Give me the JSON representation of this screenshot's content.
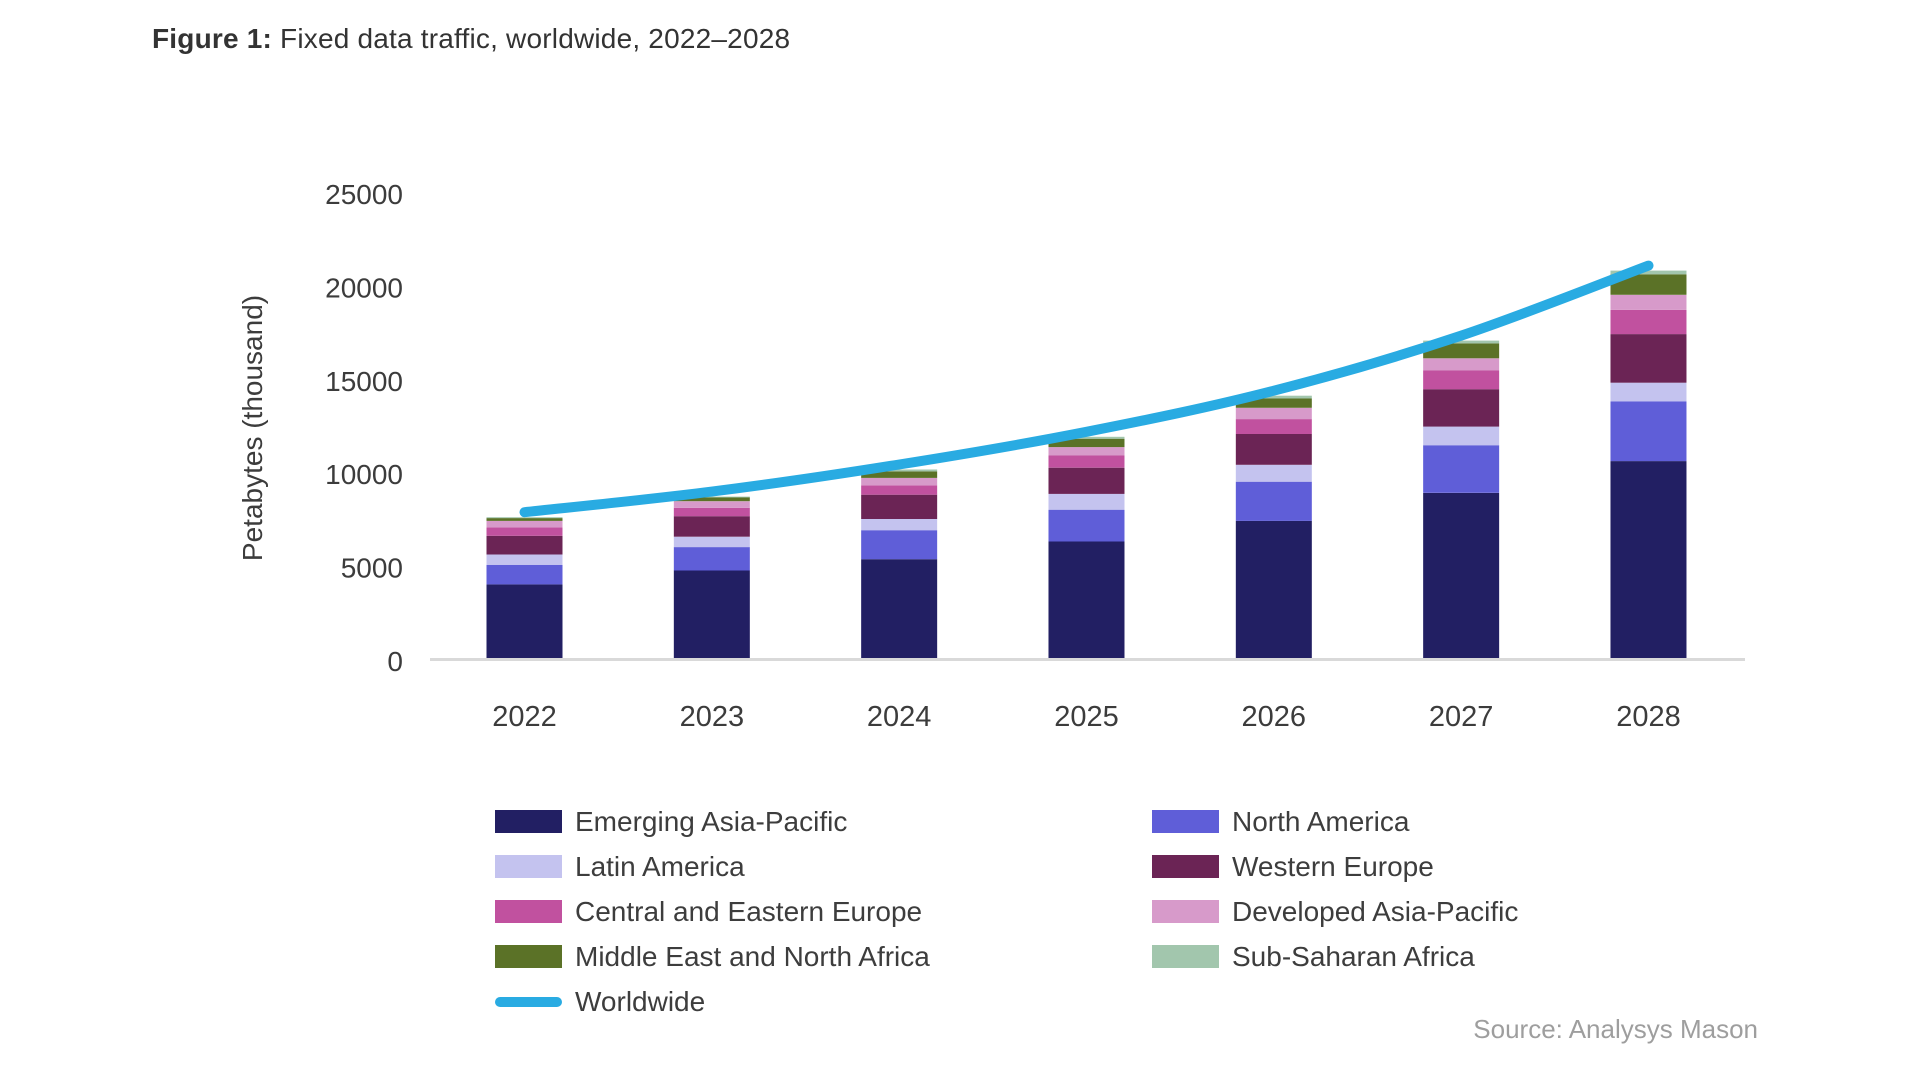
{
  "figure": {
    "label": "Figure 1:",
    "title": " Fixed data traffic, worldwide, 2022–2028"
  },
  "source": "Source: Analysys Mason",
  "colors": {
    "axis_line": "#d9d9d9",
    "tick_text": "#3c3c3c",
    "title_text": "#333333",
    "source_text": "#9e9e9e"
  },
  "chart_data": {
    "type": "bar",
    "stacked": true,
    "title": "Fixed data traffic, worldwide, 2022–2028",
    "xlabel": "",
    "ylabel": "Petabytes (thousand)",
    "ylim": [
      0,
      25000
    ],
    "yticks": [
      0,
      5000,
      10000,
      15000,
      20000,
      25000
    ],
    "grid": false,
    "legend_position": "bottom",
    "categories": [
      "2022",
      "2023",
      "2024",
      "2025",
      "2026",
      "2027",
      "2028"
    ],
    "series": [
      {
        "name": "Emerging Asia-Pacific",
        "color": "#221f63",
        "values": [
          4100,
          4850,
          5450,
          6400,
          7500,
          9000,
          10700
        ]
      },
      {
        "name": "North America",
        "color": "#5f5ed8",
        "values": [
          1050,
          1250,
          1550,
          1700,
          2100,
          2550,
          3200
        ]
      },
      {
        "name": "Latin America",
        "color": "#c4c3ef",
        "values": [
          550,
          550,
          600,
          850,
          900,
          1000,
          1000
        ]
      },
      {
        "name": "Western Europe",
        "color": "#6b2455",
        "values": [
          1000,
          1100,
          1300,
          1400,
          1650,
          2000,
          2600
        ]
      },
      {
        "name": "Central and Eastern Europe",
        "color": "#c1519f",
        "values": [
          450,
          450,
          500,
          650,
          800,
          1000,
          1300
        ]
      },
      {
        "name": "Developed Asia-Pacific",
        "color": "#d79aca",
        "values": [
          350,
          350,
          400,
          450,
          600,
          650,
          800
        ]
      },
      {
        "name": "Middle East and North Africa",
        "color": "#5b7227",
        "values": [
          150,
          200,
          350,
          450,
          500,
          800,
          1100
        ]
      },
      {
        "name": "Sub-Saharan Africa",
        "color": "#a2c6ad",
        "values": [
          50,
          50,
          100,
          100,
          150,
          150,
          200
        ]
      }
    ],
    "line_series": {
      "name": "Worldwide",
      "color": "#29abe2",
      "values": [
        7700,
        8800,
        10250,
        12000,
        14200,
        17150,
        20900
      ]
    }
  }
}
